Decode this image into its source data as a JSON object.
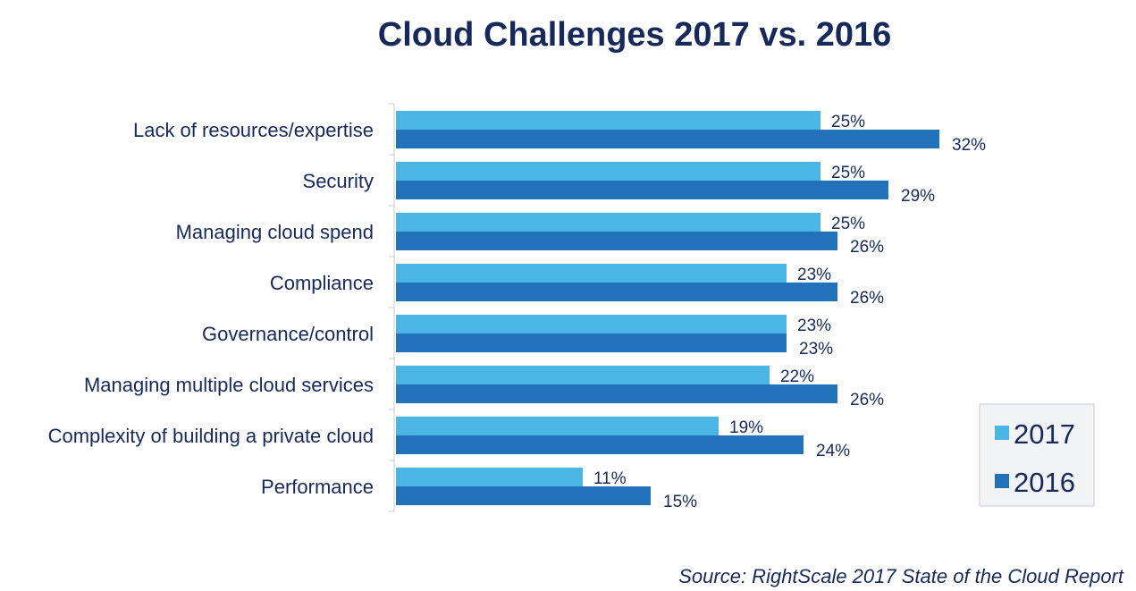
{
  "chart_data": {
    "type": "bar",
    "orientation": "horizontal",
    "title": "Cloud Challenges 2017 vs. 2016",
    "xlabel": "",
    "ylabel": "",
    "xlim": [
      0,
      32
    ],
    "grid": false,
    "legend_position": "bottom-right",
    "categories": [
      "Lack of resources/expertise",
      "Security",
      "Managing cloud spend",
      "Compliance",
      "Governance/control",
      "Managing multiple cloud services",
      "Complexity of building a private cloud",
      "Performance"
    ],
    "series": [
      {
        "name": "2017",
        "color": "#4bb5e6",
        "values": [
          25,
          25,
          25,
          23,
          23,
          22,
          19,
          11
        ]
      },
      {
        "name": "2016",
        "color": "#2172b9",
        "values": [
          32,
          29,
          26,
          26,
          23,
          26,
          24,
          15
        ]
      }
    ],
    "value_suffix": "%"
  },
  "source": "Source: RightScale 2017 State of the Cloud Report"
}
